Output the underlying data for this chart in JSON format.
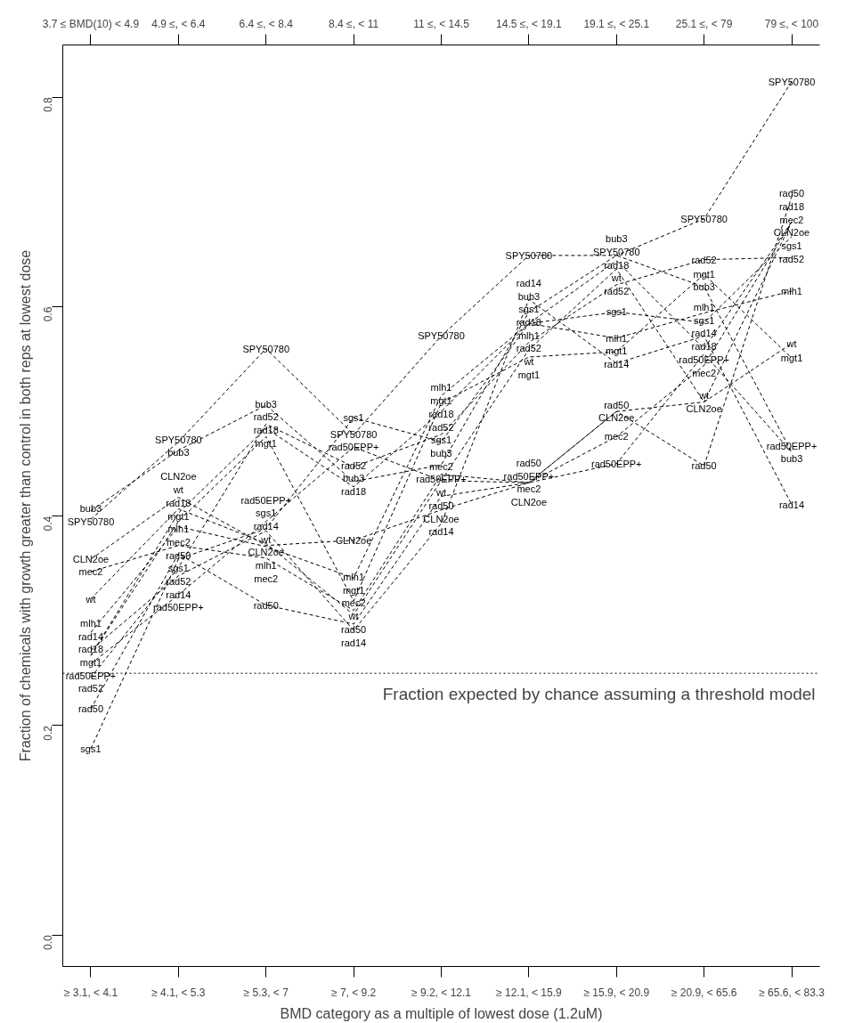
{
  "chart_data": {
    "type": "line",
    "xlabel": "BMD category as a multiple of lowest dose (1.2uM)",
    "ylabel": "Fraction of chemicals with growth greater than control in both reps at lowest dose",
    "categories": [
      "≥ 3.1, < 4.1",
      "≥ 4.1, < 5.3",
      "≥ 5.3, < 7",
      "≥ 7, < 9.2",
      "≥ 9.2, < 12.1",
      "≥ 12.1, < 15.9",
      "≥ 15.9, < 20.9",
      "≥ 20.9, < 65.6",
      "≥ 65.6, < 83.3"
    ],
    "annotations": [
      "3.7 ≤ BMD(10) < 4.9",
      "4.9 ≤, < 6.4",
      "6.4 ≤, < 8.4",
      "8.4 ≤, < 11",
      "11 ≤, < 14.5",
      "14.5 ≤, < 19.1",
      "19.1 ≤, < 25.1",
      "25.1 ≤, < 79",
      "79 ≤, < 100"
    ],
    "ylim": [
      -0.03,
      0.85
    ],
    "yticks": [
      {
        "value": 0,
        "label": "0.0"
      },
      0.2,
      0.4,
      0.6,
      0.8
    ],
    "grid": false,
    "marker": "none",
    "line_style": "dashed",
    "ref_lines": [
      {
        "axis": "y",
        "value": 0.25,
        "label": "Fraction expected by chance assuming a threshold model",
        "line_style": "dotted",
        "color": "#000000"
      }
    ],
    "series": [
      {
        "name": "SPY50780",
        "color": "#000000",
        "values": [
          0.397,
          0.471,
          0.56,
          0.478,
          0.572,
          0.649,
          0.649,
          0.684,
          0.815
        ]
      },
      {
        "name": "bub3",
        "color": "#000000",
        "values": [
          0.405,
          0.463,
          0.506,
          0.433,
          0.449,
          0.595,
          0.649,
          0.619,
          0.461
        ]
      },
      {
        "name": "CLN2oe",
        "color": "#000000",
        "values": [
          0.359,
          0.418,
          0.372,
          0.377,
          0.406,
          0.432,
          0.5,
          0.509,
          0.681
        ]
      },
      {
        "name": "mec2",
        "color": "#000000",
        "values": [
          0.347,
          0.372,
          0.36,
          0.31,
          0.44,
          0.432,
          0.476,
          0.544,
          0.681
        ]
      },
      {
        "name": "wt",
        "color": "#000000",
        "values": [
          0.321,
          0.407,
          0.374,
          0.306,
          0.434,
          0.559,
          0.636,
          0.509,
          0.565
        ]
      },
      {
        "name": "mlh1",
        "color": "#000000",
        "values": [
          0.289,
          0.39,
          0.371,
          0.341,
          0.515,
          0.584,
          0.57,
          0.594,
          0.615
        ]
      },
      {
        "name": "rad14",
        "color": "#000000",
        "values": [
          0.272,
          0.343,
          0.386,
          0.291,
          0.393,
          0.607,
          0.546,
          0.572,
          0.411
        ]
      },
      {
        "name": "mgt1",
        "color": "#000000",
        "values": [
          0.267,
          0.395,
          0.476,
          0.319,
          0.508,
          0.552,
          0.557,
          0.631,
          0.551
        ]
      },
      {
        "name": "rad18",
        "color": "#000000",
        "values": [
          0.267,
          0.403,
          0.484,
          0.428,
          0.5,
          0.584,
          0.644,
          0.56,
          0.681
        ]
      },
      {
        "name": "rad50EPP+",
        "color": "#000000",
        "values": [
          0.259,
          0.325,
          0.395,
          0.466,
          0.434,
          0.432,
          0.45,
          0.555,
          0.461
        ]
      },
      {
        "name": "rad52",
        "color": "#000000",
        "values": [
          0.246,
          0.351,
          0.488,
          0.447,
          0.478,
          0.566,
          0.621,
          0.645,
          0.647
        ]
      },
      {
        "name": "rad50",
        "color": "#000000",
        "values": [
          0.216,
          0.364,
          0.315,
          0.297,
          0.419,
          0.432,
          0.5,
          0.448,
          0.705
        ]
      },
      {
        "name": "sgs1",
        "color": "#000000",
        "values": [
          0.178,
          0.359,
          0.388,
          0.494,
          0.471,
          0.584,
          0.595,
          0.585,
          0.667
        ]
      }
    ]
  }
}
